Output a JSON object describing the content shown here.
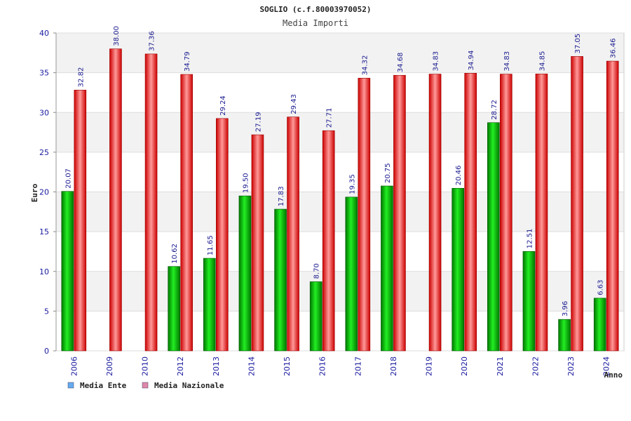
{
  "chart_data": {
    "type": "bar",
    "title": "SOGLIO (c.f.80003970052)",
    "subtitle": "Media Importi",
    "xlabel": "Anno",
    "ylabel": "Euro",
    "ylim": [
      0,
      40
    ],
    "yticks": [
      0,
      5,
      10,
      15,
      20,
      25,
      30,
      35,
      40
    ],
    "grid": "horizontal-bands",
    "legend_position": "bottom-left",
    "categories": [
      "2006",
      "2009",
      "2010",
      "2012",
      "2013",
      "2014",
      "2015",
      "2016",
      "2017",
      "2018",
      "2019",
      "2020",
      "2021",
      "2022",
      "2023",
      "2024"
    ],
    "series": [
      {
        "name": "Media Ente",
        "color": "#00aa00",
        "legend_color": "#66aaee",
        "values": [
          20.07,
          null,
          null,
          10.62,
          11.65,
          19.5,
          17.83,
          8.7,
          19.35,
          20.75,
          null,
          20.46,
          28.72,
          12.51,
          3.96,
          6.63
        ],
        "labels": [
          "20.07",
          "",
          "",
          "10.62",
          "11.65",
          "19.50",
          "17.83",
          "8.70",
          "19.35",
          "20.75",
          "",
          "20.46",
          "28.72",
          "12.51",
          "3.96",
          "6.63"
        ]
      },
      {
        "name": "Media Nazionale",
        "color": "#ee0000",
        "legend_color": "#dd88aa",
        "values": [
          32.82,
          38.0,
          37.36,
          34.79,
          29.24,
          27.19,
          29.43,
          27.71,
          34.32,
          34.68,
          34.83,
          34.94,
          34.83,
          34.85,
          37.05,
          36.46
        ],
        "labels": [
          "32.82",
          "38.00",
          "37.36",
          "34.79",
          "29.24",
          "27.19",
          "29.43",
          "27.71",
          "34.32",
          "34.68",
          "34.83",
          "34.94",
          "34.83",
          "34.85",
          "37.05",
          "36.46"
        ]
      }
    ]
  }
}
